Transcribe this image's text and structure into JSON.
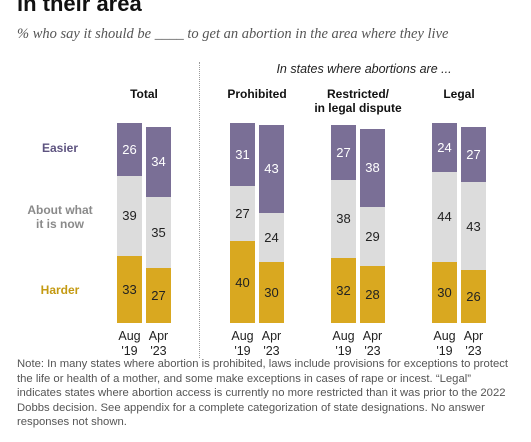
{
  "header": {
    "title": "in their area",
    "subtitle": "% who say it should be ____ to get an abortion in the area where they live"
  },
  "states_header": "In states where abortions are ...",
  "row_labels": {
    "easier": "Easier",
    "about_what_it_is_now_line1": "About what",
    "about_what_it_is_now_line2": "it is now",
    "harder": "Harder"
  },
  "colors": {
    "easier": "#7a6f96",
    "about": "#dcdcdc",
    "harder": "#d9a820",
    "easier_label": "#5e5480",
    "about_label": "#8a8a8a",
    "harder_label": "#c49a12"
  },
  "groups": [
    {
      "title_line1": "Total",
      "title_line2": ""
    },
    {
      "title_line1": "Prohibited",
      "title_line2": ""
    },
    {
      "title_line1": "Restricted/",
      "title_line2": "in legal dispute"
    },
    {
      "title_line1": "Legal",
      "title_line2": ""
    }
  ],
  "bar_labels": {
    "aug_month": "Aug",
    "aug_year": "'19",
    "apr_month": "Apr",
    "apr_year": "'23"
  },
  "chart_data": {
    "type": "bar",
    "stacked": true,
    "groups": [
      "Total",
      "Prohibited",
      "Restricted/ in legal dispute",
      "Legal"
    ],
    "periods": [
      "Aug '19",
      "Apr '23"
    ],
    "series": [
      {
        "name": "Easier",
        "values": [
          [
            26,
            34
          ],
          [
            31,
            43
          ],
          [
            27,
            38
          ],
          [
            24,
            27
          ]
        ]
      },
      {
        "name": "About what it is now",
        "values": [
          [
            39,
            35
          ],
          [
            27,
            24
          ],
          [
            38,
            29
          ],
          [
            44,
            43
          ]
        ]
      },
      {
        "name": "Harder",
        "values": [
          [
            33,
            27
          ],
          [
            40,
            30
          ],
          [
            32,
            28
          ],
          [
            30,
            26
          ]
        ]
      }
    ]
  },
  "note": "Note: In many states where abortion is prohibited, laws include provisions for exceptions to protect the life or health of a mother, and some make exceptions in cases of rape or incest. “Legal” indicates states where abortion access is currently no more restricted than it was prior to the 2022 Dobbs decision. See appendix for a complete categorization of state designations. No answer responses not shown."
}
